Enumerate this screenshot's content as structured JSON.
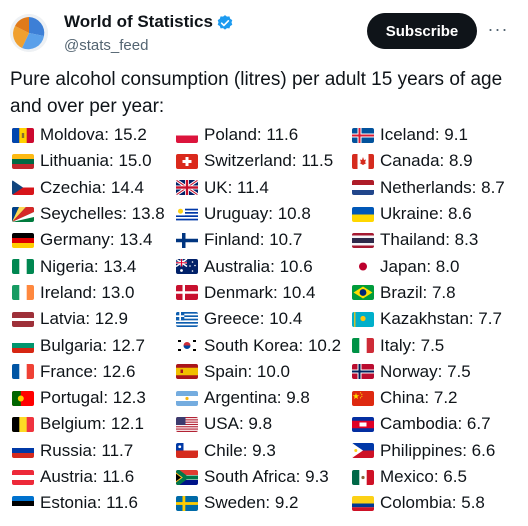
{
  "author": {
    "name": "World of Statistics",
    "handle": "@stats_feed",
    "verified": true
  },
  "actions": {
    "subscribe_label": "Subscribe",
    "more_label": "···"
  },
  "tweet": {
    "text": "Pure alcohol consumption (litres) per adult 15 years of age and over per year:"
  },
  "entries": [
    {
      "label": "Moldova: 15.2",
      "flag": "moldova"
    },
    {
      "label": "Lithuania: 15.0",
      "flag": "lithuania"
    },
    {
      "label": "Czechia: 14.4",
      "flag": "czechia"
    },
    {
      "label": "Seychelles: 13.8",
      "flag": "seychelles"
    },
    {
      "label": "Germany: 13.4",
      "flag": "germany"
    },
    {
      "label": "Nigeria: 13.4",
      "flag": "nigeria"
    },
    {
      "label": "Ireland: 13.0",
      "flag": "ireland"
    },
    {
      "label": "Latvia: 12.9",
      "flag": "latvia"
    },
    {
      "label": "Bulgaria: 12.7",
      "flag": "bulgaria"
    },
    {
      "label": "France: 12.6",
      "flag": "france"
    },
    {
      "label": "Portugal: 12.3",
      "flag": "portugal"
    },
    {
      "label": "Belgium: 12.1",
      "flag": "belgium"
    },
    {
      "label": "Russia: 11.7",
      "flag": "russia"
    },
    {
      "label": "Austria: 11.6",
      "flag": "austria"
    },
    {
      "label": "Estonia: 11.6",
      "flag": "estonia"
    },
    {
      "label": "Poland: 11.6",
      "flag": "poland"
    },
    {
      "label": "Switzerland: 11.5",
      "flag": "switzerland"
    },
    {
      "label": "UK: 11.4",
      "flag": "uk"
    },
    {
      "label": "Uruguay: 10.8",
      "flag": "uruguay"
    },
    {
      "label": "Finland: 10.7",
      "flag": "finland"
    },
    {
      "label": "Australia: 10.6",
      "flag": "australia"
    },
    {
      "label": "Denmark: 10.4",
      "flag": "denmark"
    },
    {
      "label": "Greece: 10.4",
      "flag": "greece"
    },
    {
      "label": "South Korea: 10.2",
      "flag": "south-korea"
    },
    {
      "label": "Spain: 10.0",
      "flag": "spain"
    },
    {
      "label": "Argentina: 9.8",
      "flag": "argentina"
    },
    {
      "label": "USA: 9.8",
      "flag": "usa"
    },
    {
      "label": "Chile: 9.3",
      "flag": "chile"
    },
    {
      "label": "South Africa: 9.3",
      "flag": "south-africa"
    },
    {
      "label": "Sweden: 9.2",
      "flag": "sweden"
    },
    {
      "label": "Iceland: 9.1",
      "flag": "iceland"
    },
    {
      "label": "Canada: 8.9",
      "flag": "canada"
    },
    {
      "label": "Netherlands: 8.7",
      "flag": "netherlands"
    },
    {
      "label": "Ukraine: 8.6",
      "flag": "ukraine"
    },
    {
      "label": "Thailand: 8.3",
      "flag": "thailand"
    },
    {
      "label": "Japan: 8.0",
      "flag": "japan"
    },
    {
      "label": "Brazil: 7.8",
      "flag": "brazil"
    },
    {
      "label": "Kazakhstan: 7.7",
      "flag": "kazakhstan"
    },
    {
      "label": "Italy: 7.5",
      "flag": "italy"
    },
    {
      "label": "Norway: 7.5",
      "flag": "norway"
    },
    {
      "label": "China: 7.2",
      "flag": "china"
    },
    {
      "label": "Cambodia: 6.7",
      "flag": "cambodia"
    },
    {
      "label": "Philippines: 6.6",
      "flag": "philippines"
    },
    {
      "label": "Mexico: 6.5",
      "flag": "mexico"
    },
    {
      "label": "Colombia: 5.8",
      "flag": "colombia"
    }
  ]
}
